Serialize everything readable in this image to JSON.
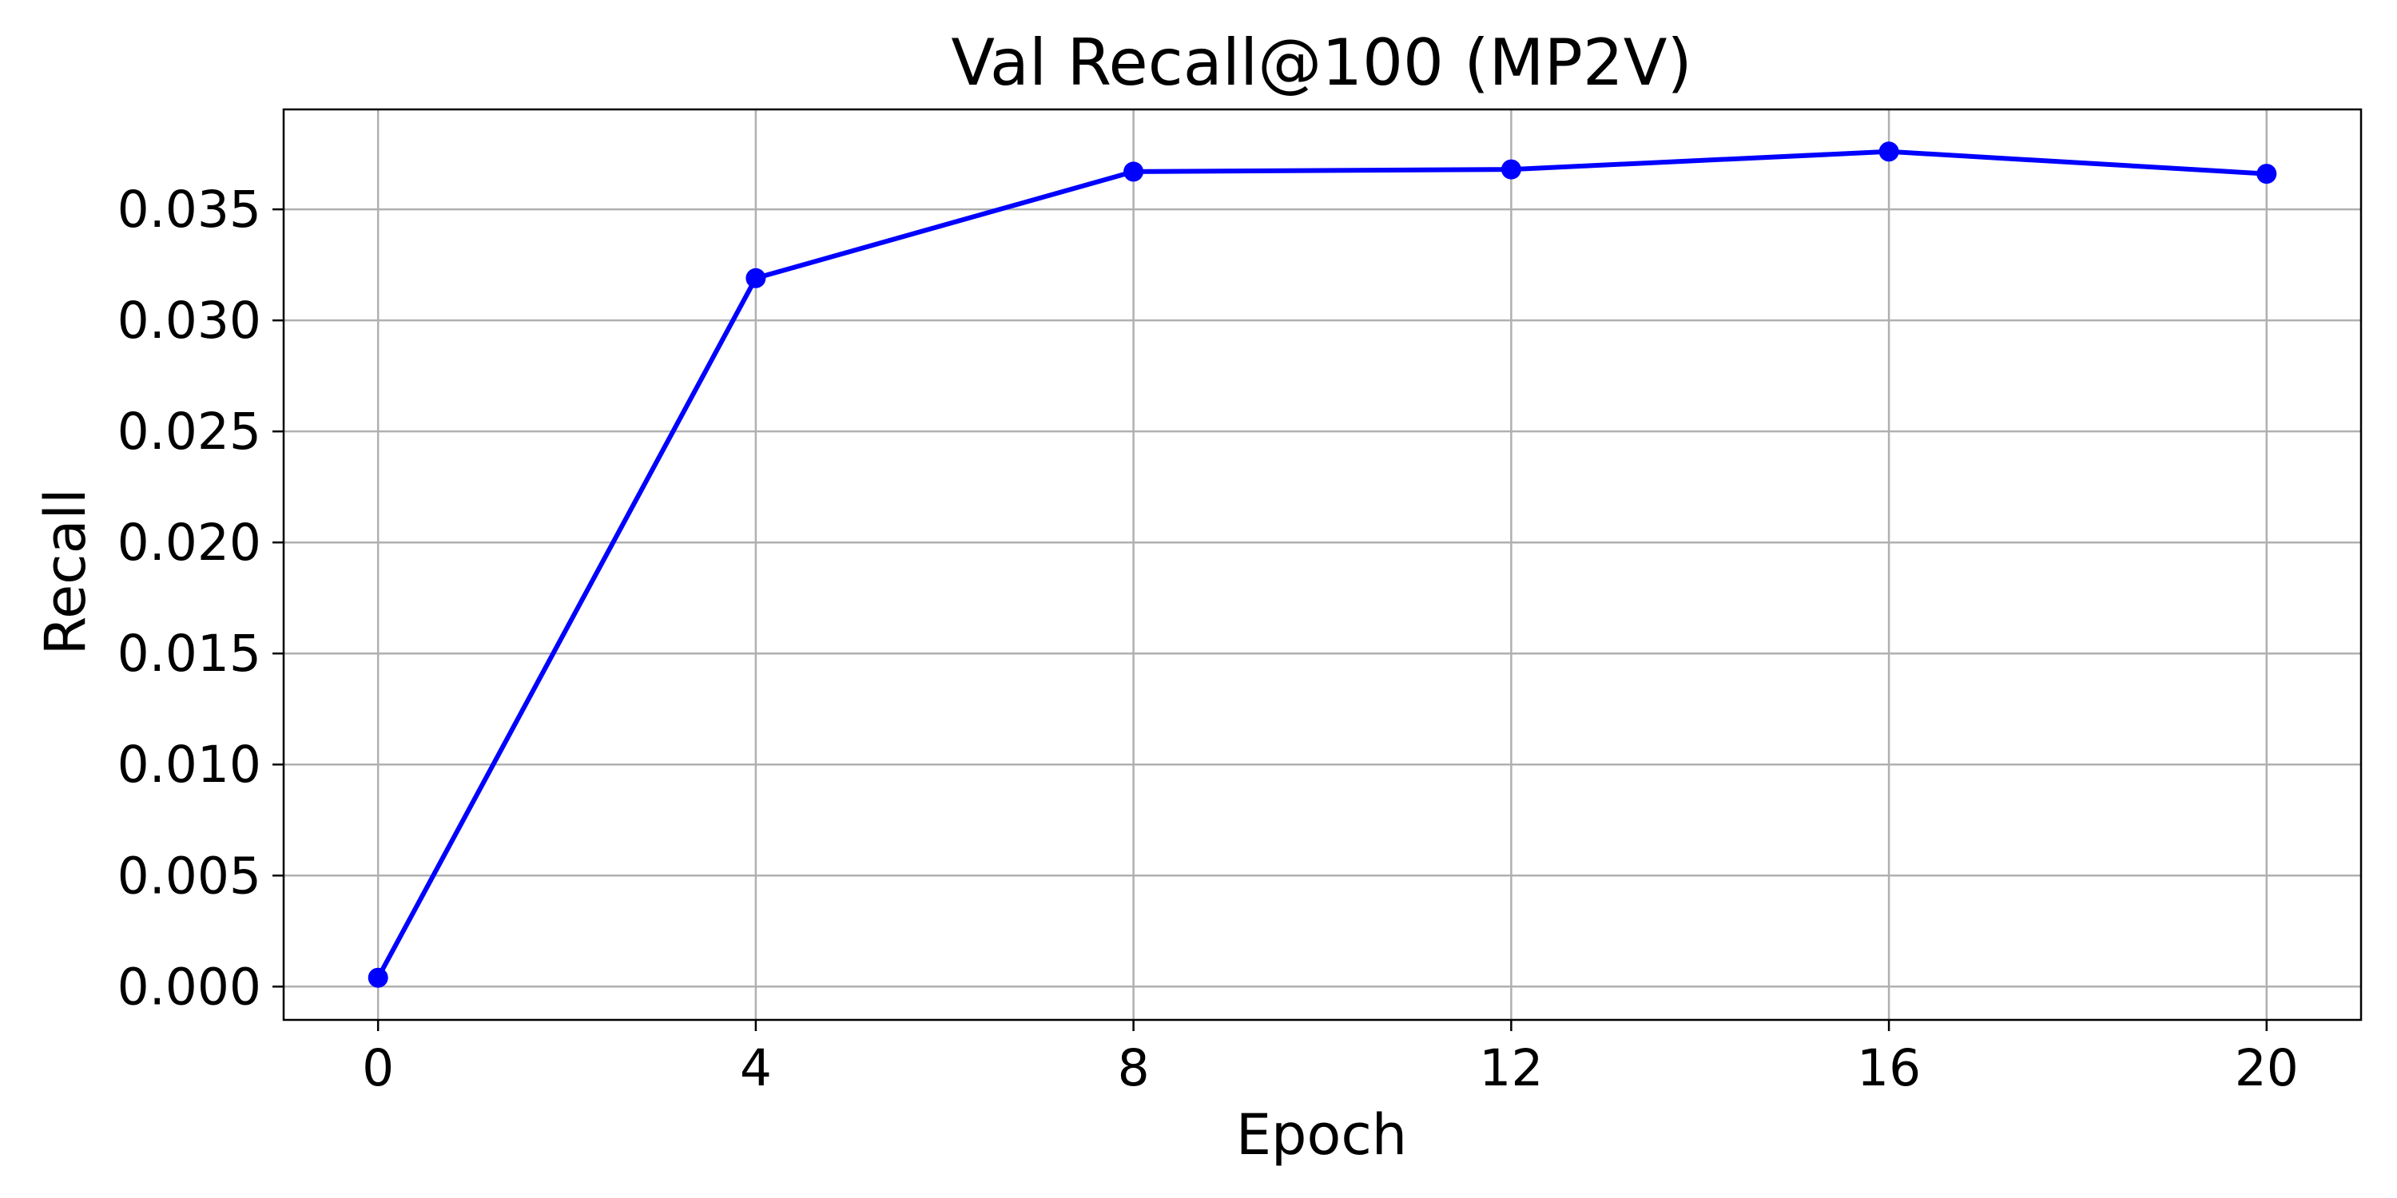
{
  "chart_data": {
    "type": "line",
    "title": "Val Recall@100 (MP2V)",
    "xlabel": "Epoch",
    "ylabel": "Recall",
    "xlim": [
      -1,
      21
    ],
    "ylim": [
      -0.0015,
      0.0395
    ],
    "xticks": [
      0,
      4,
      8,
      12,
      16,
      20
    ],
    "xtick_labels": [
      "0",
      "4",
      "8",
      "12",
      "16",
      "20"
    ],
    "yticks": [
      0.0,
      0.005,
      0.01,
      0.015,
      0.02,
      0.025,
      0.03,
      0.035
    ],
    "ytick_labels": [
      "0.000",
      "0.005",
      "0.010",
      "0.015",
      "0.020",
      "0.025",
      "0.030",
      "0.035"
    ],
    "grid": true,
    "series": [
      {
        "color": "#0000ff",
        "marker": "circle",
        "x": [
          0,
          4,
          8,
          12,
          16,
          20
        ],
        "y": [
          0.0004,
          0.0319,
          0.0367,
          0.0368,
          0.0376,
          0.0366
        ]
      }
    ]
  }
}
